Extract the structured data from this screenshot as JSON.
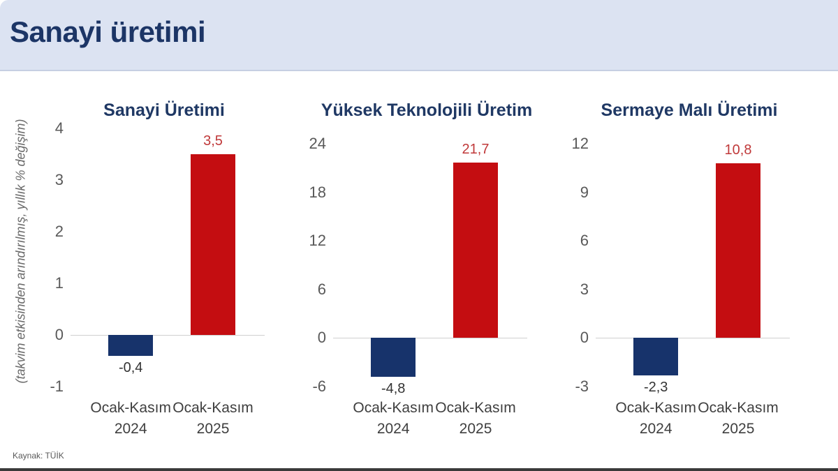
{
  "header": {
    "title": "Sanayi üretimi"
  },
  "side_note": "(takvim etkisinden arındırılmış, yıllık % değişim)",
  "source": "Kaynak: TÜİK",
  "colors": {
    "header_bg": "#dce3f2",
    "header_title_text": "#1c3566",
    "chart_title_text": "#1f3864",
    "bar_negative": "#17336b",
    "bar_positive": "#c40d11",
    "value_label_positive": "#c0393a",
    "value_label_negative": "#333333",
    "tick_text": "#595959",
    "axis_line": "#cfcfcf"
  },
  "chart_data": [
    {
      "type": "bar",
      "title": "Sanayi Üretimi",
      "categories": [
        "Ocak-Kasım 2024",
        "Ocak-Kasım 2025"
      ],
      "values": [
        -0.4,
        3.5
      ],
      "value_labels": [
        "-0,4",
        "3,5"
      ],
      "ticks": [
        4,
        3,
        2,
        1,
        0,
        -1
      ],
      "ylim": [
        -1,
        4
      ],
      "xlabel": "",
      "ylabel": "(takvim etkisinden arındırılmış, yıllık % değişim)",
      "grid": false,
      "legend": false
    },
    {
      "type": "bar",
      "title": "Yüksek Teknolojili Üretim",
      "categories": [
        "Ocak-Kasım 2024",
        "Ocak-Kasım 2025"
      ],
      "values": [
        -4.8,
        21.7
      ],
      "value_labels": [
        "-4,8",
        "21,7"
      ],
      "ticks": [
        24,
        18,
        12,
        6,
        0,
        -6
      ],
      "ylim": [
        -6,
        24
      ],
      "xlabel": "",
      "ylabel": "(takvim etkisinden arındırılmış, yıllık % değişim)",
      "grid": false,
      "legend": false
    },
    {
      "type": "bar",
      "title": "Sermaye Malı Üretimi",
      "categories": [
        "Ocak-Kasım 2024",
        "Ocak-Kasım 2025"
      ],
      "values": [
        -2.3,
        10.8
      ],
      "value_labels": [
        "-2,3",
        "10,8"
      ],
      "ticks": [
        12,
        9,
        6,
        3,
        0,
        -3
      ],
      "ylim": [
        -3,
        12
      ],
      "xlabel": "",
      "ylabel": "(takvim etkisinden arındırılmış, yıllık % değişim)",
      "grid": false,
      "legend": false
    }
  ]
}
